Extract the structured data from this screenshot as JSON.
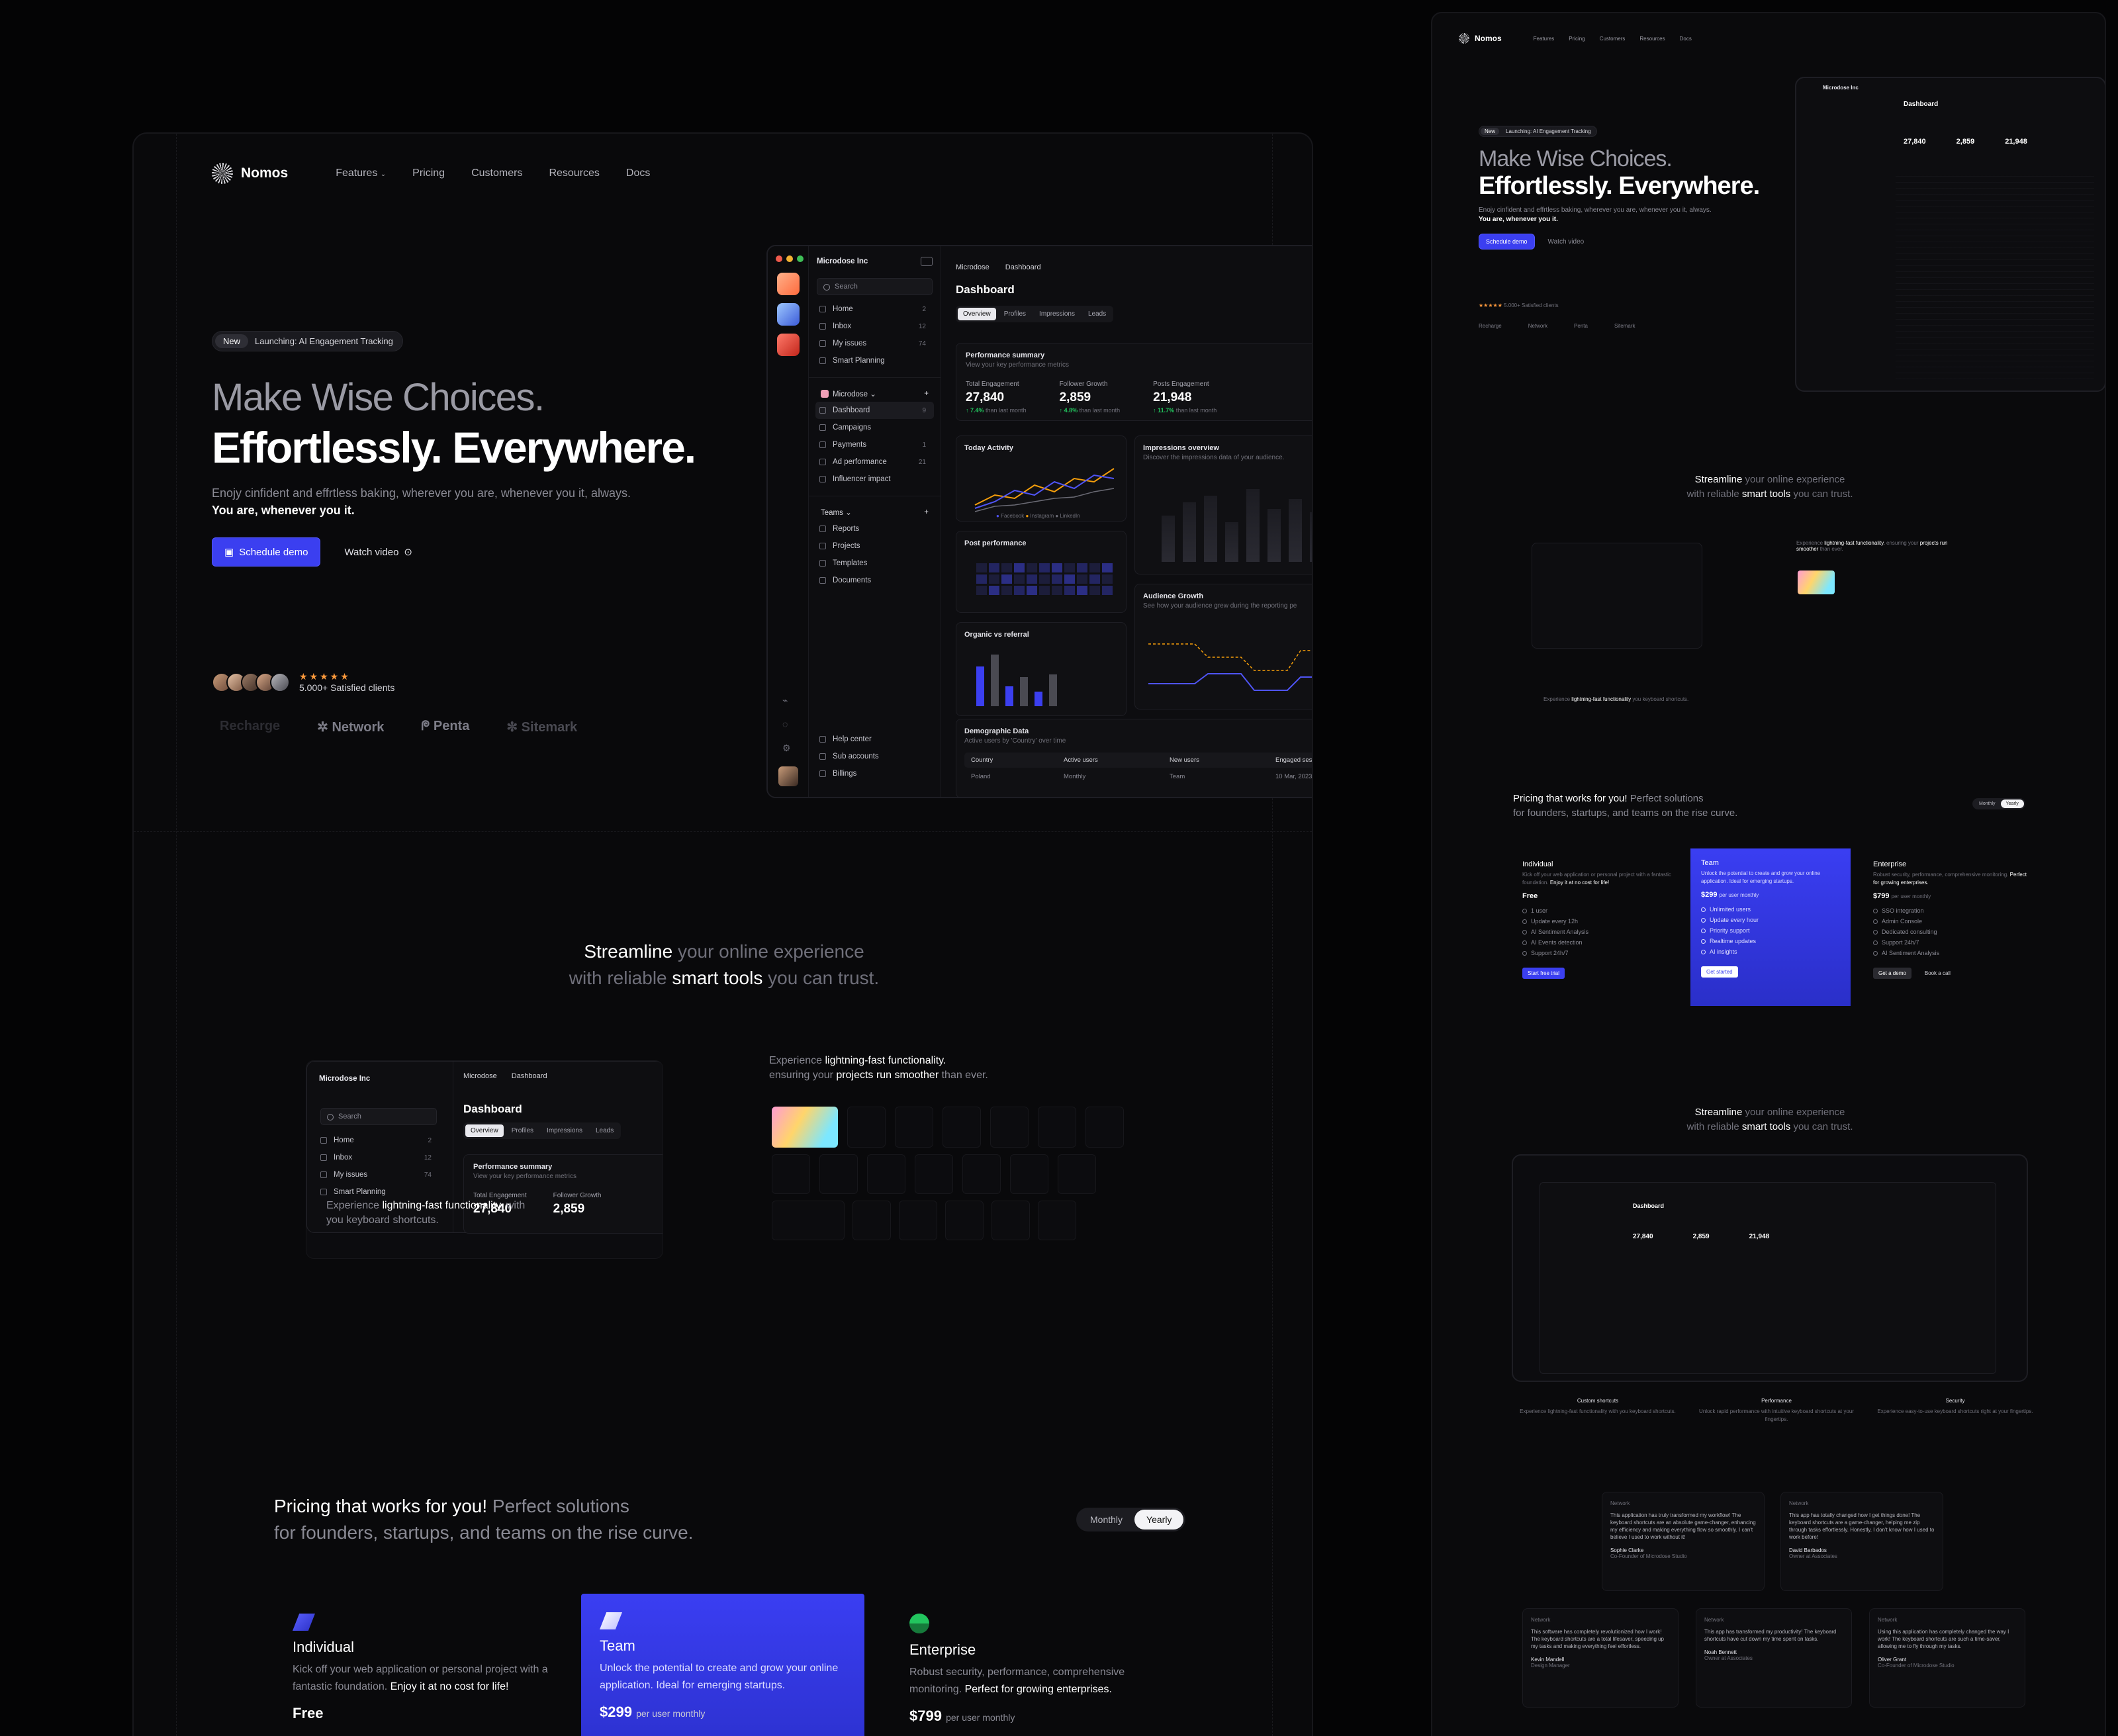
{
  "nav": {
    "brand": "Nomos",
    "links": [
      "Features",
      "Pricing",
      "Customers",
      "Resources",
      "Docs"
    ]
  },
  "hero": {
    "badge_tag": "New",
    "badge_text": "Launching: AI Engagement Tracking",
    "title_line1": "Make Wise Choices.",
    "title_line2": "Effortlessly. Everywhere.",
    "lede": "Enojy cinfident and effrtless baking, wherever you are, whenever you it, always.",
    "lede_bold": "You are, whenever you it.",
    "cta_primary": "Schedule demo",
    "cta_secondary": "Watch video",
    "stars": "★★★★★",
    "clients": "5.000+ Satisfied clients",
    "brands": [
      "Recharge",
      "Network",
      "Penta",
      "Sitemark"
    ]
  },
  "dashboard": {
    "org": "Microdose Inc",
    "search": "Search",
    "nav": [
      {
        "label": "Home",
        "count": "2"
      },
      {
        "label": "Inbox",
        "count": "12"
      },
      {
        "label": "My issues",
        "count": "74"
      },
      {
        "label": "Smart Planning",
        "count": ""
      }
    ],
    "workspace": "Microdose",
    "workspace_items": [
      {
        "label": "Dashboard",
        "count": "9"
      },
      {
        "label": "Campaigns",
        "count": ""
      },
      {
        "label": "Payments",
        "count": "1"
      },
      {
        "label": "Ad performance",
        "count": "21"
      },
      {
        "label": "Influencer impact",
        "count": ""
      }
    ],
    "teams": "Teams",
    "team_items": [
      "Reports",
      "Projects",
      "Templates",
      "Documents"
    ],
    "footer_items": [
      "Help center",
      "Sub accounts",
      "Billings"
    ],
    "breadcrumb": [
      "Microdose",
      "Dashboard"
    ],
    "title": "Dashboard",
    "tabs": [
      "Overview",
      "Profiles",
      "Impressions",
      "Leads"
    ],
    "perf_title": "Performance summary",
    "perf_sub": "View your key performance metrics",
    "kpis": [
      {
        "label": "Total Engagement",
        "value": "27,840",
        "delta": "↑ 7.4%",
        "note": "than last month"
      },
      {
        "label": "Follower Growth",
        "value": "2,859",
        "delta": "↑ 4.8%",
        "note": "than last month"
      },
      {
        "label": "Posts Engagement",
        "value": "21,948",
        "delta": "↑ 11.7%",
        "note": "than last month"
      }
    ],
    "activity_title": "Today Activity",
    "activity_legend": [
      "Facebook",
      "Instagram",
      "LinkedIn"
    ],
    "impressions_title": "Impressions overview",
    "impressions_sub": "Discover the impressions data of your audience.",
    "post_title": "Post performance",
    "organic_title": "Organic vs referral",
    "audience_title": "Audience Growth",
    "audience_sub": "See how your audience grew during the reporting pe",
    "demo_title": "Demographic Data",
    "demo_sub": "Active users by 'Country' over time",
    "demo_cols": [
      "Country",
      "Active users",
      "New users",
      "Engaged sessi"
    ],
    "demo_row": [
      "Poland",
      "Monthly",
      "Team",
      "10 Mar, 2023"
    ]
  },
  "features": {
    "headline_b1": "Streamline",
    "headline_1": "your online experience",
    "headline_2": "with reliable",
    "headline_b2": "smart tools",
    "headline_3": "you can trust.",
    "card1_text_a": "Experience",
    "card1_text_b": "lightning-fast functionality",
    "card1_text_c": ", with",
    "card1_text_d": "you keyboard shortcuts.",
    "card2_a": "Experience",
    "card2_b": "lightning-fast functionality.",
    "card2_c": "ensuring your",
    "card2_d": "projects run smoother",
    "card2_e": "than ever."
  },
  "pricing": {
    "title": "Pricing that works for you!",
    "title_muted": "Perfect solutions",
    "title_line2": "for founders, startups, and teams on the rise curve.",
    "toggle": [
      "Monthly",
      "Yearly"
    ],
    "plans": [
      {
        "name": "Individual",
        "desc": "Kick off your web application or personal project with a fantastic foundation.",
        "desc_bold": "Enjoy it at no cost for life!",
        "price": "Free",
        "per": "",
        "color": "#3b3ff0",
        "features": [
          "1 user",
          "Update every 12h",
          "AI Sentiment Analysis",
          "AI Events detection",
          "Support 24h/7"
        ],
        "cta": "Start free trial"
      },
      {
        "name": "Team",
        "desc": "Unlock the potential to create and grow your online application. Ideal for emerging startups.",
        "desc_bold": "",
        "price": "$299",
        "per": "per user monthly",
        "color": "#ffffff",
        "features": [
          "Unlimited users",
          "Update every hour",
          "Priority support",
          "Realtime updates",
          "AI insights"
        ],
        "cta": "Get started"
      },
      {
        "name": "Enterprise",
        "desc": "Robust security, performance, comprehensive monitoring.",
        "desc_bold": "Perfect for growing enterprises.",
        "price": "$799",
        "per": "per user monthly",
        "color": "#22c55e",
        "features": [
          "SSO integration",
          "Admin Console",
          "Dedicated consulting",
          "Support 24h/7",
          "AI Sentiment Analysis"
        ],
        "cta": "Get a demo",
        "cta2": "Book a call"
      }
    ]
  },
  "bottom_features": [
    {
      "title": "Custom shortcuts",
      "desc": "Experience lightning-fast functionality with you keyboard shortcuts."
    },
    {
      "title": "Performance",
      "desc": "Unlock rapid performance with intuitive keyboard shortcuts at your fingertips."
    },
    {
      "title": "Security",
      "desc": "Experience easy-to-use keyboard shortcuts right at your fingertips."
    }
  ],
  "testimonials": [
    {
      "brand": "Network",
      "quote": "This application has truly transformed my workflow! The keyboard shortcuts are an absolute game-changer, enhancing my efficiency and making everything flow so smoothly. I can't believe I used to work without it!",
      "name": "Sophie Clarke",
      "role": "Co-Founder of Microdose Studio"
    },
    {
      "brand": "Network",
      "quote": "This app has totally changed how I get things done! The keyboard shortcuts are a game-changer, helping me zip through tasks effortlessly. Honestly, I don't know how I used to work before!",
      "name": "David Barbados",
      "role": "Owner at Associates"
    },
    {
      "brand": "Network",
      "quote": "This software has completely revolutionized how I work! The keyboard shortcuts are a total lifesaver, speeding up my tasks and making everything feel effortless.",
      "name": "Kevin Mandell",
      "role": "Design Manager"
    },
    {
      "brand": "Network",
      "quote": "This app has transformed my productivity! The keyboard shortcuts have cut down my time spent on tasks.",
      "name": "Noah Bennett",
      "role": "Owner at Associates"
    },
    {
      "brand": "Network",
      "quote": "Using this application has completely changed the way I work! The keyboard shortcuts are such a time-saver, allowing me to fly through my tasks.",
      "name": "Oliver Grant",
      "role": "Co-Founder of Microdose Studio"
    }
  ],
  "colors": {
    "accent": "#3b3ff0",
    "positive": "#22c55e",
    "orange": "#f59e0b",
    "bg": "#09090b"
  }
}
